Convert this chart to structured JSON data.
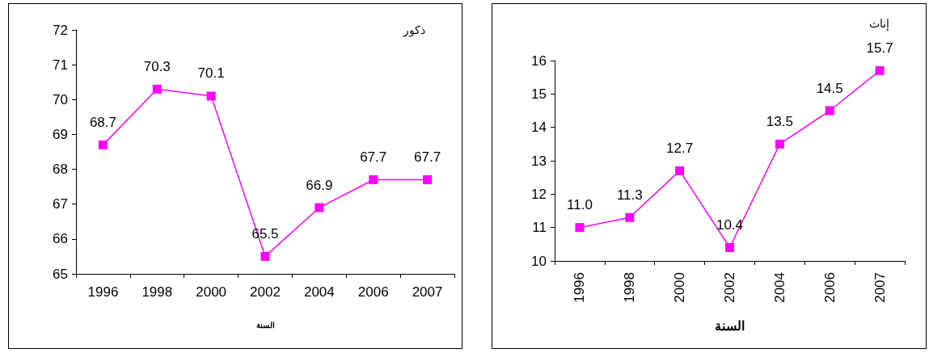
{
  "chart_data": [
    {
      "type": "line",
      "title": "ذكور",
      "xlabel": "السنة",
      "categories": [
        "1996",
        "1998",
        "2000",
        "2002",
        "2004",
        "2006",
        "2007"
      ],
      "series": [
        {
          "color": "#ff00ff",
          "values": [
            68.7,
            70.3,
            70.1,
            65.5,
            66.9,
            67.7,
            67.7
          ]
        }
      ],
      "ylim": [
        65,
        72
      ],
      "yticks": [
        65,
        66,
        67,
        68,
        69,
        70,
        71,
        72
      ],
      "marker": "square",
      "data_labels": true
    },
    {
      "type": "line",
      "title": "إناث",
      "xlabel": "السنة",
      "categories": [
        "1996",
        "1998",
        "2000",
        "2002",
        "2004",
        "2006",
        "2007"
      ],
      "series": [
        {
          "color": "#ff00ff",
          "values": [
            11.0,
            11.3,
            12.7,
            10.4,
            13.5,
            14.5,
            15.7
          ],
          "value_labels": [
            "11.0",
            "11.3",
            "12.7",
            "10.4",
            "13.5",
            "14.5",
            "15.7"
          ]
        }
      ],
      "ylim": [
        10,
        16
      ],
      "yticks": [
        10,
        11,
        12,
        13,
        14,
        15,
        16
      ],
      "marker": "square"
    }
  ]
}
